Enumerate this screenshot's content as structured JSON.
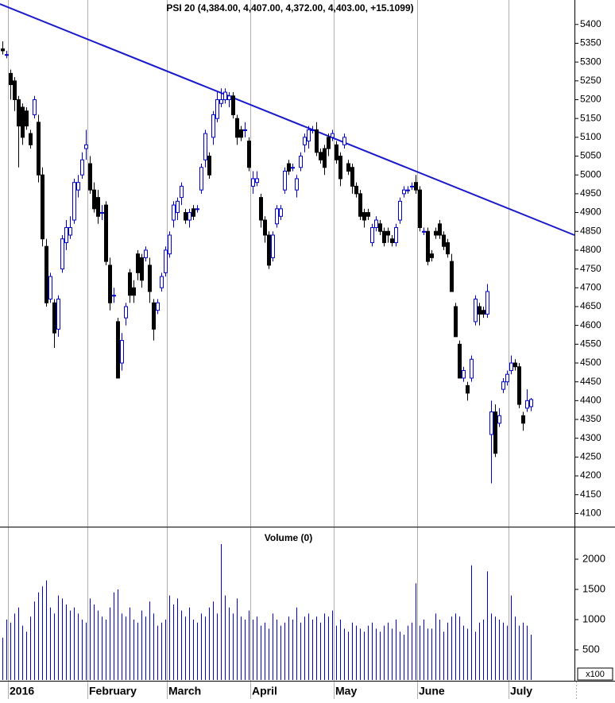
{
  "chart_data": {
    "type": "candlestick",
    "title": "PSI 20 (4,384.00, 4,407.00, 4,372.00, 4,403.00, +15.1099)",
    "categories": [
      null,
      null,
      "2016",
      null,
      null,
      null,
      null,
      null,
      null,
      null,
      null,
      null,
      null,
      null,
      null,
      null,
      null,
      null,
      null,
      null,
      null,
      null,
      "February",
      null,
      null,
      null,
      null,
      null,
      null,
      null,
      null,
      null,
      null,
      null,
      null,
      null,
      null,
      null,
      null,
      null,
      null,
      null,
      "March",
      null,
      null,
      null,
      null,
      null,
      null,
      null,
      null,
      null,
      null,
      null,
      null,
      null,
      null,
      null,
      null,
      null,
      null,
      null,
      null,
      "April",
      null,
      null,
      null,
      null,
      null,
      null,
      null,
      null,
      null,
      null,
      null,
      null,
      null,
      null,
      null,
      null,
      null,
      null,
      null,
      null,
      "May",
      null,
      null,
      null,
      null,
      null,
      null,
      null,
      null,
      null,
      null,
      null,
      null,
      null,
      null,
      null,
      null,
      null,
      null,
      null,
      null,
      "June",
      null,
      null,
      null,
      null,
      null,
      null,
      null,
      null,
      null,
      null,
      null,
      null,
      null,
      null,
      null,
      null,
      null,
      null,
      null,
      null,
      null,
      null,
      "July",
      null,
      null,
      null,
      null,
      null
    ],
    "open": [
      5335,
      5320,
      5270,
      5250,
      5200,
      5180,
      5170,
      5110,
      5160,
      5140,
      5000,
      4810,
      4670,
      4660,
      4590,
      4750,
      4820,
      4840,
      4880,
      4960,
      5000,
      5070,
      5030,
      4960,
      4940,
      4900,
      4920,
      4760,
      4680,
      4610,
      4500,
      4620,
      4740,
      4700,
      4790,
      4780,
      4780,
      4760,
      4660,
      4640,
      4700,
      4740,
      4790,
      4880,
      4900,
      4940,
      4900,
      4880,
      4910,
      4910,
      4960,
      5040,
      5050,
      5100,
      5150,
      5190,
      5200,
      5200,
      5210,
      5150,
      5120,
      5120,
      5090,
      4970,
      4980,
      4940,
      4880,
      4840,
      4780,
      4870,
      4890,
      4960,
      5030,
      5020,
      4960,
      5020,
      5080,
      5090,
      5120,
      5120,
      5060,
      5070,
      5100,
      5100,
      5080,
      5050,
      5080,
      5030,
      5020,
      4970,
      4950,
      4900,
      4900,
      4820,
      4860,
      4870,
      4850,
      4850,
      4830,
      4820,
      4880,
      4950,
      4960,
      4970,
      4980,
      4960,
      4850,
      4850,
      4790,
      4850,
      4870,
      4840,
      4820,
      4770,
      4650,
      4550,
      4460,
      4440,
      4460,
      4610,
      4650,
      4640,
      4630,
      4310,
      4370,
      4340,
      4430,
      4450,
      4480,
      4500,
      4490,
      4360,
      4380,
      4384
    ],
    "high": [
      5355,
      5330,
      5280,
      5260,
      5210,
      5190,
      5180,
      5120,
      5210,
      5160,
      5020,
      4830,
      4740,
      4670,
      4680,
      4840,
      4880,
      4890,
      4990,
      5000,
      5060,
      5120,
      5050,
      4980,
      4960,
      4920,
      4930,
      4780,
      4700,
      4620,
      4580,
      4660,
      4750,
      4720,
      4800,
      4790,
      4810,
      4780,
      4670,
      4670,
      4740,
      4810,
      4850,
      4930,
      4940,
      4980,
      4910,
      4910,
      4920,
      4920,
      5030,
      5120,
      5060,
      5170,
      5220,
      5230,
      5230,
      5220,
      5220,
      5160,
      5130,
      5140,
      5100,
      5010,
      5010,
      4950,
      4890,
      4850,
      4850,
      4920,
      4920,
      5020,
      5040,
      5030,
      5000,
      5060,
      5110,
      5130,
      5130,
      5140,
      5070,
      5080,
      5110,
      5120,
      5090,
      5060,
      5110,
      5040,
      5030,
      4980,
      4960,
      4910,
      4910,
      4870,
      4890,
      4880,
      4860,
      4860,
      4840,
      4870,
      4940,
      4970,
      4970,
      4980,
      5000,
      4970,
      4860,
      4860,
      4800,
      4860,
      4880,
      4850,
      4830,
      4790,
      4660,
      4560,
      4490,
      4450,
      4520,
      4680,
      4660,
      4650,
      4710,
      4400,
      4390,
      4380,
      4460,
      4480,
      4520,
      4510,
      4500,
      4370,
      4430,
      4407
    ],
    "low": [
      5320,
      5310,
      5200,
      5170,
      5020,
      5080,
      5120,
      5070,
      5150,
      4980,
      4810,
      4650,
      4660,
      4540,
      4570,
      4740,
      4800,
      4830,
      4870,
      4940,
      4990,
      5040,
      4950,
      4900,
      4870,
      4880,
      4760,
      4640,
      4660,
      4460,
      4480,
      4600,
      4660,
      4660,
      4720,
      4700,
      4770,
      4660,
      4560,
      4630,
      4690,
      4730,
      4780,
      4860,
      4880,
      4920,
      4870,
      4860,
      4880,
      4900,
      4950,
      5020,
      4990,
      5080,
      5140,
      5180,
      5190,
      5180,
      5150,
      5080,
      5090,
      5100,
      5010,
      4950,
      4970,
      4860,
      4820,
      4750,
      4770,
      4860,
      4880,
      4950,
      5000,
      5010,
      4940,
      5010,
      5060,
      5070,
      5110,
      5050,
      5030,
      5000,
      5050,
      5090,
      5030,
      4970,
      5070,
      5000,
      4950,
      4940,
      4880,
      4860,
      4880,
      4810,
      4850,
      4840,
      4810,
      4820,
      4810,
      4810,
      4870,
      4940,
      4950,
      4960,
      4950,
      4850,
      4840,
      4760,
      4770,
      4830,
      4830,
      4800,
      4780,
      4690,
      4570,
      4460,
      4450,
      4400,
      4450,
      4600,
      4600,
      4620,
      4620,
      4180,
      4250,
      4330,
      4420,
      4440,
      4470,
      4480,
      4380,
      4320,
      4370,
      4372
    ],
    "close": [
      5330,
      5320,
      5240,
      5200,
      5130,
      5100,
      5130,
      5080,
      5200,
      5000,
      4830,
      4660,
      4730,
      4580,
      4670,
      4830,
      4860,
      4860,
      4980,
      4980,
      5040,
      5080,
      4960,
      4910,
      4890,
      4900,
      4770,
      4660,
      4680,
      4460,
      4560,
      4650,
      4680,
      4680,
      4740,
      4720,
      4800,
      4690,
      4590,
      4660,
      4730,
      4800,
      4840,
      4920,
      4930,
      4970,
      4880,
      4900,
      4890,
      4910,
      5020,
      5110,
      5000,
      5160,
      5200,
      5200,
      5220,
      5210,
      5160,
      5100,
      5100,
      5120,
      5020,
      4990,
      4990,
      4880,
      4840,
      4760,
      4840,
      4910,
      4910,
      5010,
      5010,
      5020,
      4990,
      5050,
      5100,
      5120,
      5120,
      5060,
      5040,
      5020,
      5070,
      5110,
      5040,
      4990,
      5100,
      5010,
      4970,
      4950,
      4890,
      4880,
      4890,
      4860,
      4880,
      4850,
      4820,
      4840,
      4820,
      4860,
      4930,
      4960,
      4960,
      4970,
      4960,
      4860,
      4850,
      4770,
      4780,
      4840,
      4840,
      4810,
      4790,
      4690,
      4570,
      4460,
      4480,
      4420,
      4510,
      4670,
      4630,
      4630,
      4690,
      4370,
      4260,
      4360,
      4450,
      4470,
      4500,
      4490,
      4390,
      4340,
      4400,
      4403
    ],
    "up_color": "#0000cc",
    "down_color": "#000000",
    "ylim": [
      4065,
      5465
    ],
    "yticks": [
      4100,
      4150,
      4200,
      4250,
      4300,
      4350,
      4400,
      4450,
      4500,
      4550,
      4600,
      4650,
      4700,
      4750,
      4800,
      4850,
      4900,
      4950,
      5000,
      5050,
      5100,
      5150,
      5200,
      5250,
      5300,
      5350,
      5400
    ],
    "volume": {
      "type": "bar",
      "title": "Volume (0)",
      "unit_label": "x100",
      "color": "#0000cc",
      "values": [
        700,
        1000,
        950,
        1100,
        1200,
        900,
        800,
        1050,
        1300,
        1450,
        1550,
        1650,
        1200,
        1100,
        1400,
        1350,
        1250,
        1150,
        1200,
        1100,
        1000,
        950,
        1350,
        1250,
        1150,
        1050,
        1000,
        1200,
        1450,
        1500,
        1100,
        1050,
        1200,
        1000,
        950,
        1150,
        1050,
        1300,
        1100,
        900,
        950,
        1000,
        1400,
        1250,
        1350,
        1150,
        1050,
        1200,
        1000,
        950,
        1100,
        1050,
        1200,
        1300,
        1100,
        2250,
        1400,
        1200,
        1100,
        1350,
        1050,
        1000,
        1150,
        1000,
        1050,
        900,
        950,
        850,
        1100,
        1000,
        900,
        950,
        1050,
        1000,
        1200,
        950,
        1050,
        1100,
        1000,
        1050,
        950,
        1100,
        1050,
        1150,
        900,
        1000,
        850,
        800,
        950,
        900,
        850,
        800,
        900,
        950,
        850,
        800,
        900,
        950,
        850,
        1000,
        800,
        750,
        900,
        950,
        1600,
        900,
        1000,
        850,
        850,
        1100,
        1000,
        800,
        950,
        1050,
        1100,
        1050,
        900,
        850,
        1900,
        800,
        950,
        1000,
        1800,
        1100,
        1050,
        1000,
        950,
        900,
        1400,
        1050,
        900,
        950,
        900,
        750
      ],
      "ylim": [
        0,
        2500
      ],
      "yticks": [
        500,
        1000,
        1500,
        2000
      ]
    }
  }
}
